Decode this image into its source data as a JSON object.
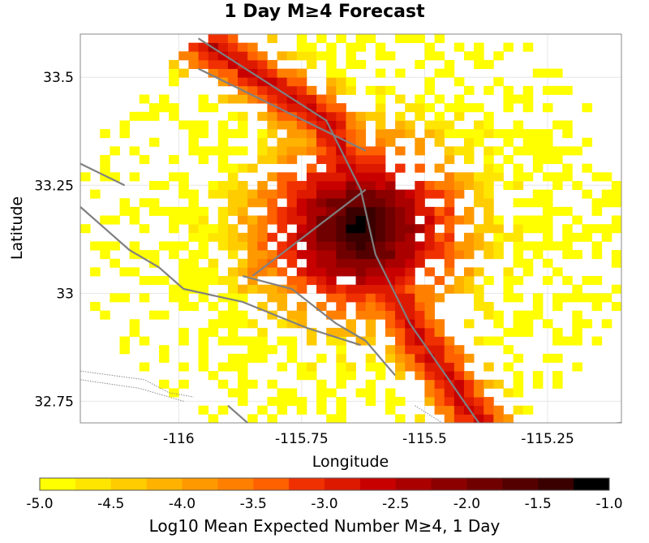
{
  "chart_data": {
    "type": "heatmap",
    "title": "1 Day M≥4 Forecast",
    "xlabel": "Longitude",
    "ylabel": "Latitude",
    "xlim": [
      -116.2,
      -115.1
    ],
    "ylim": [
      32.7,
      33.6
    ],
    "xticks": [
      {
        "value": -116,
        "label": "-116"
      },
      {
        "value": -115.75,
        "label": "-115.75"
      },
      {
        "value": -115.5,
        "label": "-115.5"
      },
      {
        "value": -115.25,
        "label": "-115.25"
      }
    ],
    "yticks": [
      {
        "value": 33.5,
        "label": "33.5"
      },
      {
        "value": 33.25,
        "label": "33.25"
      },
      {
        "value": 33,
        "label": "33"
      },
      {
        "value": 32.75,
        "label": "32.75"
      }
    ],
    "grid": true,
    "cell_size_deg": 0.02,
    "peak": {
      "lon": -115.63,
      "lat": 33.15,
      "value": -1.0
    },
    "fault_lines": [
      [
        [
          -115.96,
          33.59
        ],
        [
          -115.7,
          33.4
        ],
        [
          -115.63,
          33.24
        ],
        [
          -115.6,
          33.09
        ],
        [
          -115.53,
          32.93
        ],
        [
          -115.39,
          32.7
        ]
      ],
      [
        [
          -115.96,
          33.52
        ],
        [
          -115.62,
          33.33
        ]
      ],
      [
        [
          -115.85,
          33.04
        ],
        [
          -115.62,
          33.24
        ]
      ],
      [
        [
          -116.2,
          33.3
        ],
        [
          -116.11,
          33.25
        ]
      ],
      [
        [
          -116.2,
          33.2
        ],
        [
          -116.1,
          33.1
        ],
        [
          -116.04,
          33.06
        ],
        [
          -115.99,
          33.01
        ],
        [
          -115.87,
          32.98
        ],
        [
          -115.74,
          32.92
        ],
        [
          -115.63,
          32.88
        ]
      ],
      [
        [
          -115.87,
          33.04
        ],
        [
          -115.77,
          33.01
        ],
        [
          -115.68,
          32.93
        ],
        [
          -115.62,
          32.89
        ],
        [
          -115.56,
          32.81
        ]
      ],
      [
        [
          -115.9,
          32.74
        ],
        [
          -115.85,
          32.69
        ]
      ],
      [
        [
          -115.2,
          32.69
        ],
        [
          -115.1,
          32.7
        ]
      ]
    ],
    "dotted_lines": [
      [
        [
          -116.2,
          32.82
        ],
        [
          -116.07,
          32.8
        ],
        [
          -116.02,
          32.77
        ],
        [
          -115.97,
          32.76
        ]
      ],
      [
        [
          -116.2,
          32.8
        ],
        [
          -116.08,
          32.78
        ],
        [
          -116.02,
          32.76
        ],
        [
          -115.99,
          32.75
        ]
      ],
      [
        [
          -115.52,
          32.74
        ],
        [
          -115.45,
          32.69
        ]
      ]
    ]
  },
  "colorbar": {
    "min": -5.0,
    "max": -1.0,
    "ticks": [
      {
        "value": -5.0,
        "label": "-5.0"
      },
      {
        "value": -4.5,
        "label": "-4.5"
      },
      {
        "value": -4.0,
        "label": "-4.0"
      },
      {
        "value": -3.5,
        "label": "-3.5"
      },
      {
        "value": -3.0,
        "label": "-3.0"
      },
      {
        "value": -2.5,
        "label": "-2.5"
      },
      {
        "value": -2.0,
        "label": "-2.0"
      },
      {
        "value": -1.5,
        "label": "-1.5"
      },
      {
        "value": -1.0,
        "label": "-1.0"
      }
    ],
    "colors": [
      "#ffff00",
      "#ffe600",
      "#ffcc00",
      "#ffb300",
      "#ff9900",
      "#ff8000",
      "#ff6000",
      "#f03000",
      "#dd1a00",
      "#c80000",
      "#aa0000",
      "#8c0000",
      "#700000",
      "#550000",
      "#3a0000",
      "#000000"
    ],
    "label": "Log10 Mean Expected Number M≥4, 1 Day"
  }
}
